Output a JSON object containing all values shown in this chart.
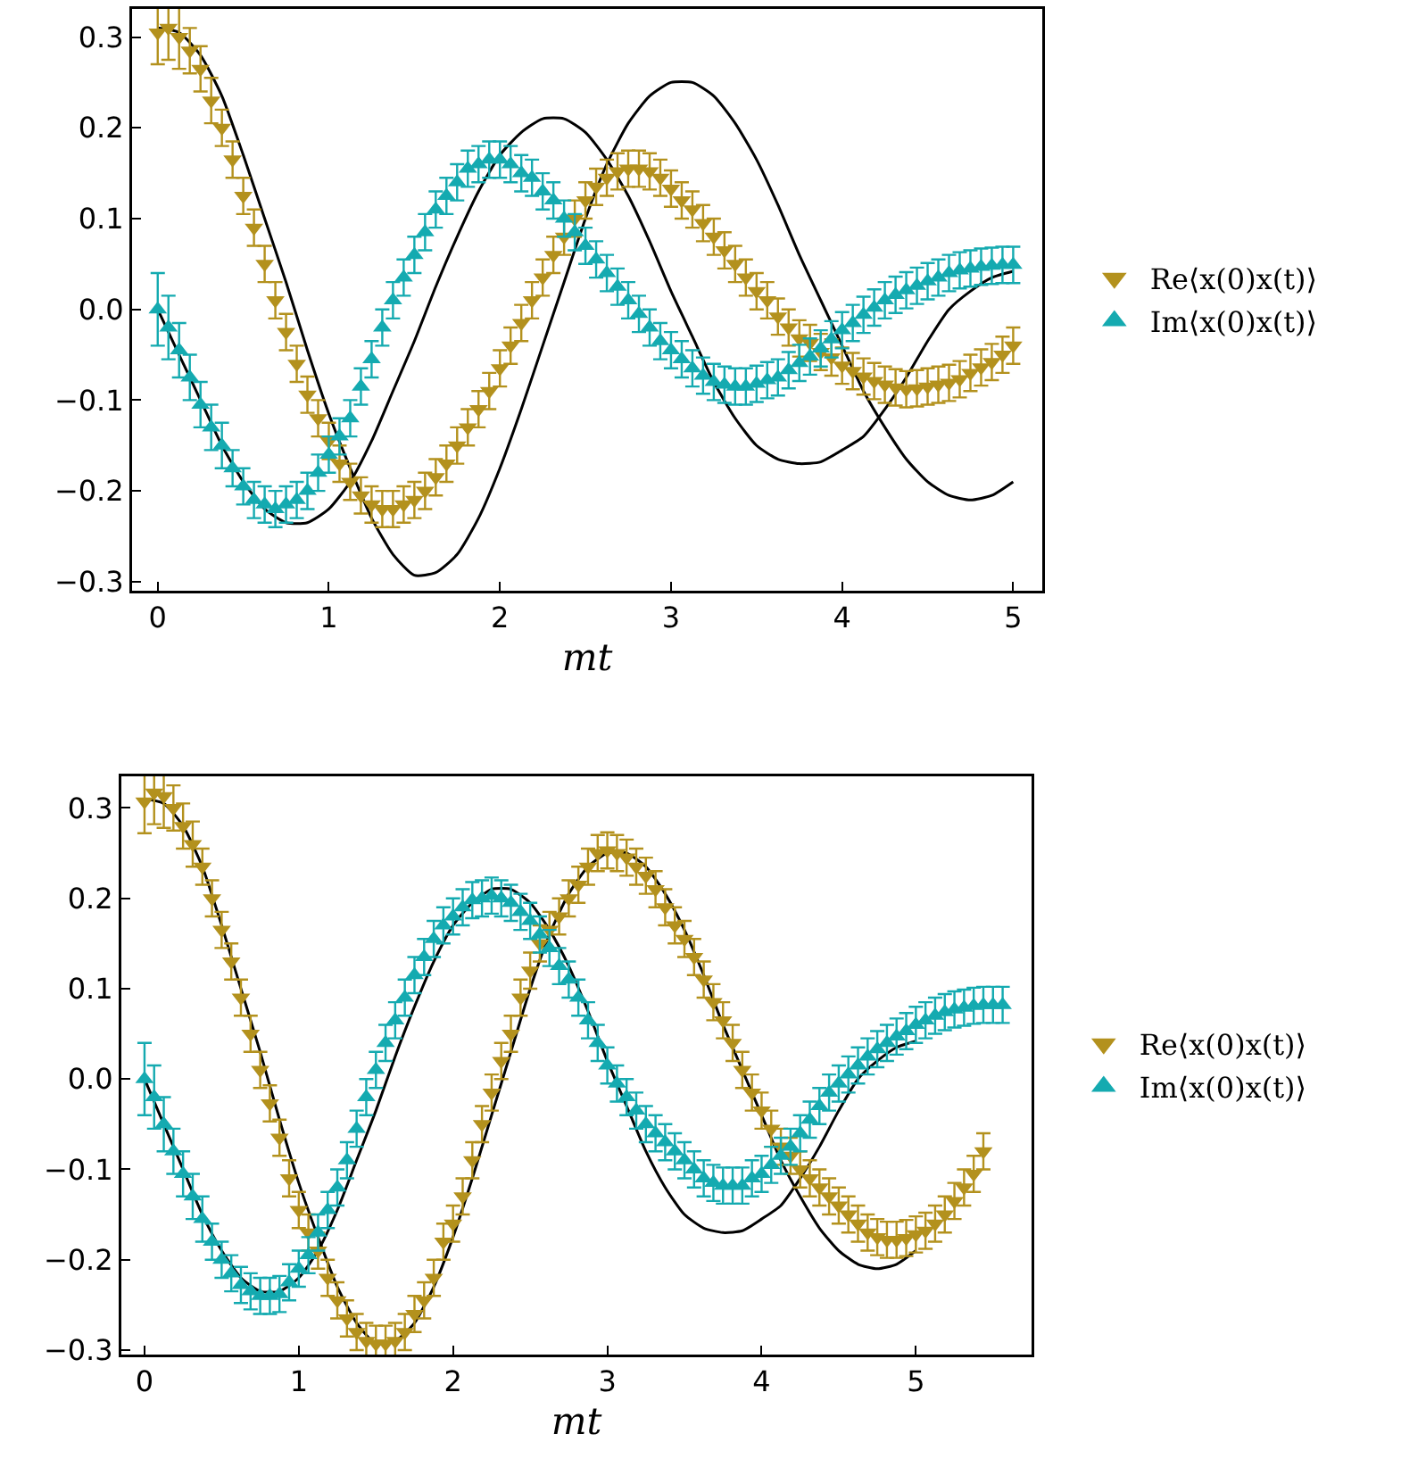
{
  "chart_data": [
    {
      "type": "scatter",
      "xlabel": "mt",
      "xlim": [
        -0.15,
        5.17
      ],
      "xticks": [
        0,
        1,
        2,
        3,
        4,
        5
      ],
      "ylim": [
        -0.31,
        0.331
      ],
      "yticks": [
        {
          "value": -0.3,
          "label": "−0.3"
        },
        {
          "value": -0.2,
          "label": "−0.2"
        },
        {
          "value": -0.1,
          "label": "−0.1"
        },
        {
          "value": 0,
          "label": "0.0"
        },
        0.1,
        0.2,
        0.3
      ],
      "legend": "right",
      "x": [
        0,
        0.0625,
        0.125,
        0.1875,
        0.25,
        0.3125,
        0.375,
        0.4375,
        0.5,
        0.5625,
        0.625,
        0.6875,
        0.75,
        0.8125,
        0.875,
        0.9375,
        1,
        1.0625,
        1.125,
        1.1875,
        1.25,
        1.3125,
        1.375,
        1.4375,
        1.5,
        1.5625,
        1.625,
        1.6875,
        1.75,
        1.8125,
        1.875,
        1.9375,
        2,
        2.0625,
        2.125,
        2.1875,
        2.25,
        2.3125,
        2.375,
        2.4375,
        2.5,
        2.5625,
        2.625,
        2.6875,
        2.75,
        2.8125,
        2.875,
        2.9375,
        3,
        3.0625,
        3.125,
        3.1875,
        3.25,
        3.3125,
        3.375,
        3.4375,
        3.5,
        3.5625,
        3.625,
        3.6875,
        3.75,
        3.8125,
        3.875,
        3.9375,
        4,
        4.0625,
        4.125,
        4.1875,
        4.25,
        4.3125,
        4.375,
        4.4375,
        4.5,
        4.5625,
        4.625,
        4.6875,
        4.75,
        4.8125,
        4.875,
        4.9375,
        5
      ],
      "series": [
        {
          "type": "line",
          "color": "#000000",
          "x": [
            0,
            0.125,
            0.25,
            0.375,
            0.5,
            0.625,
            0.75,
            0.875,
            1,
            1.125,
            1.25,
            1.375,
            1.5,
            1.625,
            1.75,
            1.875,
            2,
            2.125,
            2.25,
            2.375,
            2.5,
            2.625,
            2.75,
            2.875,
            3,
            3.125,
            3.25,
            3.375,
            3.5,
            3.625,
            3.75,
            3.875,
            4,
            4.125,
            4.25,
            4.375,
            4.5,
            4.625,
            4.75,
            4.875,
            5
          ],
          "values": [
            0.31,
            0.305,
            0.28,
            0.235,
            0.17,
            0.1,
            0.03,
            -0.045,
            -0.115,
            -0.175,
            -0.23,
            -0.27,
            -0.293,
            -0.29,
            -0.27,
            -0.23,
            -0.175,
            -0.11,
            -0.04,
            0.03,
            0.1,
            0.16,
            0.205,
            0.235,
            0.25,
            0.25,
            0.235,
            0.205,
            0.165,
            0.115,
            0.06,
            0.01,
            -0.04,
            -0.09,
            -0.13,
            -0.165,
            -0.19,
            -0.205,
            -0.21,
            -0.205,
            -0.19
          ]
        },
        {
          "type": "line",
          "color": "#000000",
          "x": [
            0,
            0.125,
            0.25,
            0.375,
            0.5,
            0.625,
            0.75,
            0.875,
            1,
            1.125,
            1.25,
            1.375,
            1.5,
            1.625,
            1.75,
            1.875,
            2,
            2.125,
            2.25,
            2.375,
            2.5,
            2.625,
            2.75,
            2.875,
            3,
            3.125,
            3.25,
            3.375,
            3.5,
            3.625,
            3.75,
            3.875,
            4,
            4.125,
            4.25,
            4.375,
            4.5,
            4.625,
            4.75,
            4.875,
            5
          ],
          "values": [
            0,
            -0.05,
            -0.1,
            -0.15,
            -0.19,
            -0.22,
            -0.235,
            -0.235,
            -0.22,
            -0.19,
            -0.145,
            -0.09,
            -0.035,
            0.025,
            0.08,
            0.13,
            0.17,
            0.195,
            0.21,
            0.21,
            0.195,
            0.165,
            0.125,
            0.075,
            0.02,
            -0.03,
            -0.08,
            -0.12,
            -0.15,
            -0.165,
            -0.17,
            -0.168,
            -0.155,
            -0.14,
            -0.11,
            -0.075,
            -0.035,
            0,
            0.02,
            0.035,
            0.042
          ]
        },
        {
          "name": "Re⟨x(0)x(t)⟩",
          "color": "#b3911d",
          "marker": "triangle-down",
          "values": [
            0.305,
            0.31,
            0.3,
            0.285,
            0.265,
            0.23,
            0.2,
            0.165,
            0.125,
            0.09,
            0.05,
            0.01,
            -0.025,
            -0.06,
            -0.094,
            -0.12,
            -0.145,
            -0.17,
            -0.19,
            -0.205,
            -0.215,
            -0.22,
            -0.22,
            -0.215,
            -0.21,
            -0.2,
            -0.185,
            -0.17,
            -0.15,
            -0.13,
            -0.11,
            -0.09,
            -0.065,
            -0.04,
            -0.015,
            0.01,
            0.035,
            0.06,
            0.08,
            0.1,
            0.12,
            0.135,
            0.145,
            0.152,
            0.155,
            0.155,
            0.152,
            0.145,
            0.133,
            0.12,
            0.11,
            0.095,
            0.08,
            0.065,
            0.05,
            0.035,
            0.02,
            0.01,
            -0.008,
            -0.02,
            -0.032,
            -0.037,
            -0.047,
            -0.053,
            -0.062,
            -0.068,
            -0.074,
            -0.079,
            -0.083,
            -0.086,
            -0.088,
            -0.087,
            -0.085,
            -0.083,
            -0.081,
            -0.077,
            -0.07,
            -0.064,
            -0.058,
            -0.05,
            -0.04
          ],
          "errors": [
            0.035,
            0.035,
            0.035,
            0.025,
            0.025,
            0.025,
            0.02,
            0.02,
            0.02,
            0.02,
            0.02,
            0.02,
            0.02,
            0.02,
            0.02,
            0.02,
            0.02,
            0.02,
            0.02,
            0.02,
            0.02,
            0.02,
            0.02,
            0.02,
            0.02,
            0.02,
            0.02,
            0.02,
            0.02,
            0.02,
            0.02,
            0.02,
            0.02,
            0.02,
            0.02,
            0.02,
            0.02,
            0.02,
            0.02,
            0.02,
            0.02,
            0.02,
            0.02,
            0.02,
            0.02,
            0.02,
            0.02,
            0.02,
            0.02,
            0.02,
            0.02,
            0.02,
            0.02,
            0.02,
            0.02,
            0.02,
            0.02,
            0.02,
            0.02,
            0.02,
            0.02,
            0.02,
            0.02,
            0.02,
            0.02,
            0.02,
            0.02,
            0.02,
            0.02,
            0.02,
            0.02,
            0.02,
            0.02,
            0.02,
            0.02,
            0.02,
            0.02,
            0.02,
            0.02,
            0.02,
            0.02
          ]
        },
        {
          "name": "Im⟨x(0)x(t)⟩",
          "color": "#14aab0",
          "marker": "triangle",
          "values": [
            0,
            -0.02,
            -0.045,
            -0.075,
            -0.105,
            -0.13,
            -0.15,
            -0.175,
            -0.195,
            -0.21,
            -0.215,
            -0.22,
            -0.215,
            -0.21,
            -0.2,
            -0.18,
            -0.16,
            -0.14,
            -0.12,
            -0.085,
            -0.055,
            -0.02,
            0.01,
            0.035,
            0.06,
            0.085,
            0.11,
            0.125,
            0.14,
            0.155,
            0.16,
            0.165,
            0.165,
            0.16,
            0.15,
            0.145,
            0.13,
            0.12,
            0.1,
            0.085,
            0.07,
            0.055,
            0.04,
            0.025,
            0.01,
            -0.005,
            -0.02,
            -0.035,
            -0.045,
            -0.055,
            -0.065,
            -0.073,
            -0.08,
            -0.083,
            -0.085,
            -0.085,
            -0.082,
            -0.078,
            -0.075,
            -0.067,
            -0.059,
            -0.052,
            -0.043,
            -0.033,
            -0.023,
            -0.015,
            -0.006,
            0.002,
            0.01,
            0.016,
            0.021,
            0.026,
            0.031,
            0.035,
            0.04,
            0.043,
            0.045,
            0.047,
            0.048,
            0.049,
            0.049
          ],
          "errors": [
            0.04,
            0.035,
            0.03,
            0.025,
            0.025,
            0.025,
            0.025,
            0.02,
            0.02,
            0.02,
            0.02,
            0.02,
            0.02,
            0.02,
            0.02,
            0.02,
            0.02,
            0.02,
            0.02,
            0.02,
            0.02,
            0.02,
            0.02,
            0.02,
            0.02,
            0.02,
            0.02,
            0.02,
            0.02,
            0.02,
            0.02,
            0.02,
            0.02,
            0.02,
            0.02,
            0.02,
            0.02,
            0.02,
            0.02,
            0.02,
            0.02,
            0.02,
            0.02,
            0.02,
            0.02,
            0.02,
            0.02,
            0.02,
            0.02,
            0.02,
            0.02,
            0.02,
            0.02,
            0.02,
            0.02,
            0.02,
            0.02,
            0.02,
            0.02,
            0.02,
            0.02,
            0.02,
            0.02,
            0.02,
            0.02,
            0.02,
            0.02,
            0.02,
            0.02,
            0.02,
            0.02,
            0.02,
            0.02,
            0.02,
            0.02,
            0.02,
            0.02,
            0.02,
            0.02,
            0.02,
            0.02
          ]
        }
      ]
    },
    {
      "type": "scatter",
      "xlabel": "mt",
      "xlim": [
        -0.15,
        5.75
      ],
      "xticks": [
        0,
        1,
        2,
        3,
        4,
        5
      ],
      "ylim": [
        -0.305,
        0.335
      ],
      "yticks": [
        {
          "value": -0.3,
          "label": "−0.3"
        },
        {
          "value": -0.2,
          "label": "−0.2"
        },
        {
          "value": -0.1,
          "label": "−0.1"
        },
        {
          "value": 0,
          "label": "0.0"
        },
        0.1,
        0.2,
        0.3
      ],
      "legend": "right",
      "x": [
        0,
        0.0625,
        0.125,
        0.1875,
        0.25,
        0.3125,
        0.375,
        0.4375,
        0.5,
        0.5625,
        0.625,
        0.6875,
        0.75,
        0.8125,
        0.875,
        0.9375,
        1,
        1.0625,
        1.125,
        1.1875,
        1.25,
        1.3125,
        1.375,
        1.4375,
        1.5,
        1.5625,
        1.625,
        1.6875,
        1.75,
        1.8125,
        1.875,
        1.9375,
        2,
        2.0625,
        2.125,
        2.1875,
        2.25,
        2.3125,
        2.375,
        2.4375,
        2.5,
        2.5625,
        2.625,
        2.6875,
        2.75,
        2.8125,
        2.875,
        2.9375,
        3,
        3.0625,
        3.125,
        3.1875,
        3.25,
        3.3125,
        3.375,
        3.4375,
        3.5,
        3.5625,
        3.625,
        3.6875,
        3.75,
        3.8125,
        3.875,
        3.9375,
        4,
        4.0625,
        4.125,
        4.1875,
        4.25,
        4.3125,
        4.375,
        4.4375,
        4.5,
        4.5625,
        4.625,
        4.6875,
        4.75,
        4.8125,
        4.875,
        4.9375,
        5,
        5.0625,
        5.125,
        5.1875,
        5.25,
        5.3125,
        5.375,
        5.4375,
        5.5,
        5.5625
      ],
      "series": [
        {
          "type": "line",
          "color": "#000000",
          "x": [
            0,
            0.125,
            0.25,
            0.375,
            0.5,
            0.625,
            0.75,
            0.875,
            1,
            1.125,
            1.25,
            1.375,
            1.5,
            1.625,
            1.75,
            1.875,
            2,
            2.125,
            2.25,
            2.375,
            2.5,
            2.625,
            2.75,
            2.875,
            3,
            3.125,
            3.25,
            3.375,
            3.5,
            3.625,
            3.75,
            3.875,
            4,
            4.125,
            4.25,
            4.375,
            4.5,
            4.625,
            4.75,
            4.875,
            5
          ],
          "values": [
            0.31,
            0.305,
            0.28,
            0.235,
            0.17,
            0.1,
            0.03,
            -0.045,
            -0.115,
            -0.175,
            -0.23,
            -0.27,
            -0.293,
            -0.29,
            -0.27,
            -0.23,
            -0.175,
            -0.11,
            -0.04,
            0.03,
            0.1,
            0.16,
            0.205,
            0.235,
            0.25,
            0.25,
            0.235,
            0.205,
            0.165,
            0.115,
            0.06,
            0.01,
            -0.04,
            -0.09,
            -0.13,
            -0.165,
            -0.19,
            -0.205,
            -0.21,
            -0.205,
            -0.19
          ]
        },
        {
          "type": "line",
          "color": "#000000",
          "x": [
            0,
            0.125,
            0.25,
            0.375,
            0.5,
            0.625,
            0.75,
            0.875,
            1,
            1.125,
            1.25,
            1.375,
            1.5,
            1.625,
            1.75,
            1.875,
            2,
            2.125,
            2.25,
            2.375,
            2.5,
            2.625,
            2.75,
            2.875,
            3,
            3.125,
            3.25,
            3.375,
            3.5,
            3.625,
            3.75,
            3.875,
            4,
            4.125,
            4.25,
            4.375,
            4.5,
            4.625,
            4.75,
            4.875,
            5
          ],
          "values": [
            0,
            -0.05,
            -0.1,
            -0.15,
            -0.19,
            -0.22,
            -0.235,
            -0.235,
            -0.22,
            -0.19,
            -0.145,
            -0.09,
            -0.035,
            0.025,
            0.08,
            0.13,
            0.17,
            0.195,
            0.21,
            0.21,
            0.195,
            0.165,
            0.125,
            0.075,
            0.02,
            -0.03,
            -0.08,
            -0.12,
            -0.15,
            -0.165,
            -0.17,
            -0.168,
            -0.155,
            -0.14,
            -0.11,
            -0.075,
            -0.035,
            0,
            0.02,
            0.035,
            0.042
          ]
        },
        {
          "name": "Re⟨x(0)x(t)⟩",
          "color": "#b3911d",
          "marker": "triangle-down",
          "values": [
            0.307,
            0.317,
            0.313,
            0.3,
            0.28,
            0.26,
            0.235,
            0.2,
            0.165,
            0.13,
            0.09,
            0.05,
            0.01,
            -0.027,
            -0.065,
            -0.11,
            -0.145,
            -0.17,
            -0.19,
            -0.22,
            -0.245,
            -0.265,
            -0.28,
            -0.29,
            -0.293,
            -0.293,
            -0.29,
            -0.28,
            -0.26,
            -0.245,
            -0.22,
            -0.18,
            -0.16,
            -0.13,
            -0.09,
            -0.05,
            -0.015,
            0.02,
            0.05,
            0.09,
            0.12,
            0.15,
            0.165,
            0.18,
            0.2,
            0.215,
            0.235,
            0.25,
            0.253,
            0.25,
            0.245,
            0.235,
            0.225,
            0.21,
            0.19,
            0.17,
            0.155,
            0.135,
            0.11,
            0.085,
            0.065,
            0.04,
            0.01,
            -0.015,
            -0.035,
            -0.055,
            -0.075,
            -0.085,
            -0.1,
            -0.11,
            -0.12,
            -0.13,
            -0.14,
            -0.15,
            -0.16,
            -0.17,
            -0.175,
            -0.178,
            -0.178,
            -0.176,
            -0.172,
            -0.168,
            -0.16,
            -0.15,
            -0.135,
            -0.12,
            -0.105,
            -0.08,
            null,
            null
          ],
          "errors": [
            0.035,
            0.035,
            0.035,
            0.025,
            0.025,
            0.025,
            0.02,
            0.02,
            0.02,
            0.02,
            0.02,
            0.02,
            0.02,
            0.02,
            0.02,
            0.02,
            0.02,
            0.02,
            0.02,
            0.02,
            0.02,
            0.02,
            0.02,
            0.02,
            0.02,
            0.02,
            0.02,
            0.02,
            0.02,
            0.02,
            0.02,
            0.02,
            0.02,
            0.02,
            0.02,
            0.02,
            0.02,
            0.02,
            0.02,
            0.02,
            0.02,
            0.02,
            0.02,
            0.02,
            0.02,
            0.02,
            0.02,
            0.02,
            0.02,
            0.02,
            0.02,
            0.02,
            0.02,
            0.02,
            0.02,
            0.02,
            0.02,
            0.02,
            0.02,
            0.02,
            0.02,
            0.02,
            0.02,
            0.02,
            0.02,
            0.02,
            0.02,
            0.02,
            0.02,
            0.02,
            0.02,
            0.02,
            0.02,
            0.02,
            0.02,
            0.02,
            0.02,
            0.02,
            0.02,
            0.02,
            0.02,
            0.02,
            0.02,
            0.02,
            0.02,
            0.02,
            0.02,
            0.02,
            null,
            null
          ]
        },
        {
          "name": "Im⟨x(0)x(t)⟩",
          "color": "#14aab0",
          "marker": "triangle",
          "values": [
            0,
            -0.02,
            -0.05,
            -0.08,
            -0.105,
            -0.13,
            -0.155,
            -0.18,
            -0.2,
            -0.215,
            -0.228,
            -0.235,
            -0.24,
            -0.24,
            -0.238,
            -0.225,
            -0.21,
            -0.195,
            -0.17,
            -0.145,
            -0.12,
            -0.09,
            -0.055,
            -0.02,
            0.01,
            0.04,
            0.065,
            0.09,
            0.115,
            0.135,
            0.155,
            0.17,
            0.18,
            0.19,
            0.198,
            0.2,
            0.203,
            0.2,
            0.195,
            0.185,
            0.175,
            0.16,
            0.145,
            0.125,
            0.11,
            0.09,
            0.065,
            0.04,
            0.015,
            -0.005,
            -0.02,
            -0.035,
            -0.05,
            -0.06,
            -0.07,
            -0.08,
            -0.09,
            -0.1,
            -0.11,
            -0.115,
            -0.118,
            -0.118,
            -0.118,
            -0.11,
            -0.105,
            -0.095,
            -0.085,
            -0.075,
            -0.06,
            -0.045,
            -0.03,
            -0.015,
            -0.005,
            0.005,
            0.015,
            0.025,
            0.033,
            0.04,
            0.047,
            0.053,
            0.06,
            0.065,
            0.07,
            0.074,
            0.077,
            0.079,
            0.081,
            0.082,
            0.082,
            0.082
          ],
          "errors": [
            0.04,
            0.035,
            0.03,
            0.025,
            0.025,
            0.025,
            0.025,
            0.02,
            0.02,
            0.02,
            0.02,
            0.02,
            0.02,
            0.02,
            0.02,
            0.02,
            0.02,
            0.02,
            0.02,
            0.02,
            0.02,
            0.02,
            0.02,
            0.02,
            0.02,
            0.02,
            0.02,
            0.02,
            0.02,
            0.02,
            0.02,
            0.02,
            0.02,
            0.02,
            0.02,
            0.02,
            0.02,
            0.02,
            0.02,
            0.02,
            0.02,
            0.02,
            0.02,
            0.02,
            0.02,
            0.02,
            0.02,
            0.02,
            0.02,
            0.02,
            0.02,
            0.02,
            0.02,
            0.02,
            0.02,
            0.02,
            0.02,
            0.02,
            0.02,
            0.02,
            0.02,
            0.02,
            0.02,
            0.02,
            0.02,
            0.02,
            0.02,
            0.02,
            0.02,
            0.02,
            0.02,
            0.02,
            0.02,
            0.02,
            0.02,
            0.02,
            0.02,
            0.02,
            0.02,
            0.02,
            0.02,
            0.02,
            0.02,
            0.02,
            0.02,
            0.02,
            0.02,
            0.02,
            0.02,
            0.02
          ]
        }
      ]
    }
  ]
}
